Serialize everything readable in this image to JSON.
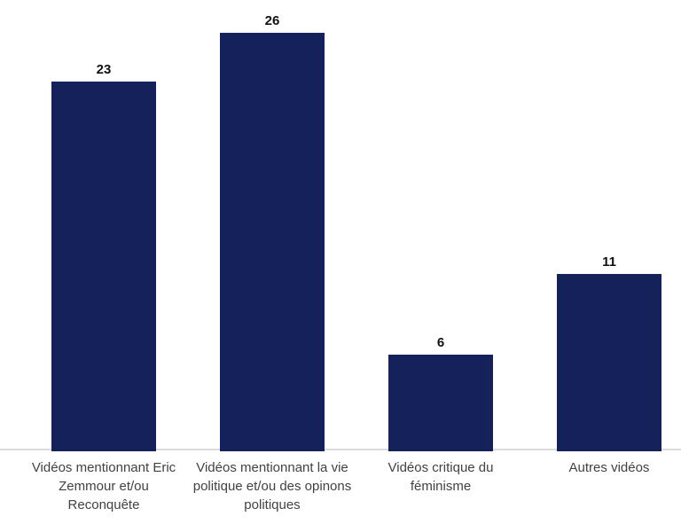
{
  "chart_data": {
    "type": "bar",
    "categories": [
      "Vidéos mentionnant Eric Zemmour et/ou Reconquête",
      "Vidéos mentionnant la vie politique et/ou des opinons politiques",
      "Vidéos critique du féminisme",
      "Autres vidéos"
    ],
    "values": [
      23,
      26,
      6,
      11
    ],
    "title": "",
    "xlabel": "",
    "ylabel": "",
    "ylim": [
      0,
      28
    ],
    "grid": false,
    "legend": false,
    "orientation": "vertical",
    "value_labels_shown": true,
    "bar_color": "#14215a",
    "value_label_color": "#111111",
    "axis_label_color": "#424242",
    "axis_line_color": "#dcdcdc",
    "background_color": "#ffffff"
  }
}
